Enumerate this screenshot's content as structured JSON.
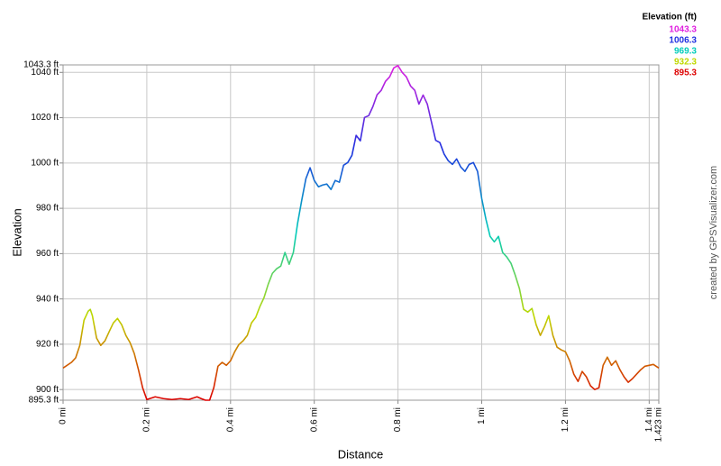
{
  "chart_data": {
    "type": "line",
    "x_label": "Distance",
    "y_label": "Elevation",
    "legend_title": "Elevation (ft)",
    "credit": "created by GPSVisualizer.com",
    "color_scale": [
      {
        "value": 1043.3,
        "color": "#e020e0"
      },
      {
        "value": 1006.3,
        "color": "#2030e0"
      },
      {
        "value": 969.3,
        "color": "#00ccbb"
      },
      {
        "value": 932.3,
        "color": "#c0d800"
      },
      {
        "value": 895.3,
        "color": "#dd0000"
      }
    ],
    "xlim": [
      0,
      1.423
    ],
    "ylim": [
      895.3,
      1043.3
    ],
    "xticks": [
      {
        "value": 0,
        "label": "0 mi"
      },
      {
        "value": 0.2,
        "label": "0.2 mi"
      },
      {
        "value": 0.4,
        "label": "0.4 mi"
      },
      {
        "value": 0.6,
        "label": "0.6 mi"
      },
      {
        "value": 0.8,
        "label": "0.8 mi"
      },
      {
        "value": 1,
        "label": "1 mi"
      },
      {
        "value": 1.2,
        "label": "1.2 mi"
      },
      {
        "value": 1.4,
        "label": "1.4 mi"
      },
      {
        "value": 1.423,
        "label": "1.423 mi"
      }
    ],
    "yticks": [
      {
        "value": 895.3,
        "label": "895.3 ft"
      },
      {
        "value": 900,
        "label": "900 ft"
      },
      {
        "value": 920,
        "label": "920 ft"
      },
      {
        "value": 940,
        "label": "940 ft"
      },
      {
        "value": 960,
        "label": "960 ft"
      },
      {
        "value": 980,
        "label": "980 ft"
      },
      {
        "value": 1000,
        "label": "1000 ft"
      },
      {
        "value": 1020,
        "label": "1020 ft"
      },
      {
        "value": 1040,
        "label": "1040 ft"
      },
      {
        "value": 1043.3,
        "label": "1043.3 ft"
      }
    ],
    "grid": true,
    "x": [
      0,
      0.02,
      0.03,
      0.04,
      0.05,
      0.06,
      0.065,
      0.07,
      0.08,
      0.09,
      0.1,
      0.11,
      0.12,
      0.13,
      0.14,
      0.15,
      0.16,
      0.17,
      0.18,
      0.19,
      0.2,
      0.22,
      0.24,
      0.26,
      0.28,
      0.3,
      0.32,
      0.33,
      0.34,
      0.35,
      0.36,
      0.37,
      0.38,
      0.39,
      0.4,
      0.41,
      0.42,
      0.43,
      0.44,
      0.45,
      0.46,
      0.47,
      0.48,
      0.49,
      0.5,
      0.51,
      0.52,
      0.53,
      0.54,
      0.55,
      0.56,
      0.57,
      0.58,
      0.59,
      0.6,
      0.61,
      0.62,
      0.63,
      0.64,
      0.65,
      0.66,
      0.67,
      0.68,
      0.69,
      0.7,
      0.71,
      0.72,
      0.73,
      0.74,
      0.75,
      0.76,
      0.77,
      0.78,
      0.79,
      0.8,
      0.81,
      0.82,
      0.83,
      0.84,
      0.85,
      0.86,
      0.87,
      0.88,
      0.89,
      0.9,
      0.91,
      0.92,
      0.93,
      0.94,
      0.95,
      0.96,
      0.97,
      0.98,
      0.99,
      1.0,
      1.01,
      1.02,
      1.03,
      1.04,
      1.05,
      1.06,
      1.07,
      1.08,
      1.09,
      1.1,
      1.11,
      1.12,
      1.13,
      1.14,
      1.15,
      1.16,
      1.17,
      1.18,
      1.19,
      1.2,
      1.21,
      1.22,
      1.23,
      1.24,
      1.25,
      1.26,
      1.27,
      1.28,
      1.29,
      1.3,
      1.31,
      1.32,
      1.33,
      1.34,
      1.35,
      1.36,
      1.37,
      1.38,
      1.39,
      1.4,
      1.41,
      1.423
    ],
    "values": [
      909.5,
      912,
      914,
      919.5,
      930.6,
      934.6,
      935.4,
      932.6,
      922.7,
      919.5,
      921.5,
      925.5,
      929.4,
      931.4,
      928.6,
      923.9,
      920.7,
      915.9,
      908.8,
      900.8,
      895.6,
      896.8,
      896,
      895.6,
      896,
      895.6,
      896.8,
      896,
      895.3,
      895.3,
      900.8,
      910.3,
      912,
      910.7,
      912.7,
      916.7,
      919.9,
      921.5,
      923.9,
      929.4,
      931.8,
      936.6,
      940.6,
      946.5,
      951.3,
      953.3,
      954.5,
      960.5,
      955.3,
      960.5,
      973.2,
      983.5,
      993.1,
      997.9,
      992.3,
      989.5,
      990.3,
      990.7,
      988.3,
      992.3,
      991.5,
      999,
      1000.2,
      1003.4,
      1012.2,
      1009.8,
      1020.1,
      1020.9,
      1024.9,
      1030.1,
      1032.1,
      1036,
      1038,
      1042,
      1043,
      1040,
      1038,
      1034,
      1032.1,
      1026,
      1030,
      1026,
      1018,
      1010,
      1009,
      1004,
      1001,
      999.4,
      1001.8,
      998.2,
      996.3,
      999.4,
      1000.2,
      996.3,
      984.3,
      975.2,
      967.6,
      965.2,
      967.6,
      960.5,
      958.5,
      955.7,
      950.5,
      944.6,
      935.4,
      934.2,
      935.8,
      928.6,
      923.9,
      927.8,
      932.6,
      923.9,
      918.7,
      917.5,
      916.7,
      912.7,
      906.8,
      903.6,
      908,
      905.6,
      901.6,
      900,
      900.8,
      910.7,
      914.3,
      910.7,
      912.7,
      908.8,
      905.6,
      903.2,
      904.8,
      906.8,
      908.8,
      910.3,
      910.7,
      911.1,
      909.5
    ]
  }
}
